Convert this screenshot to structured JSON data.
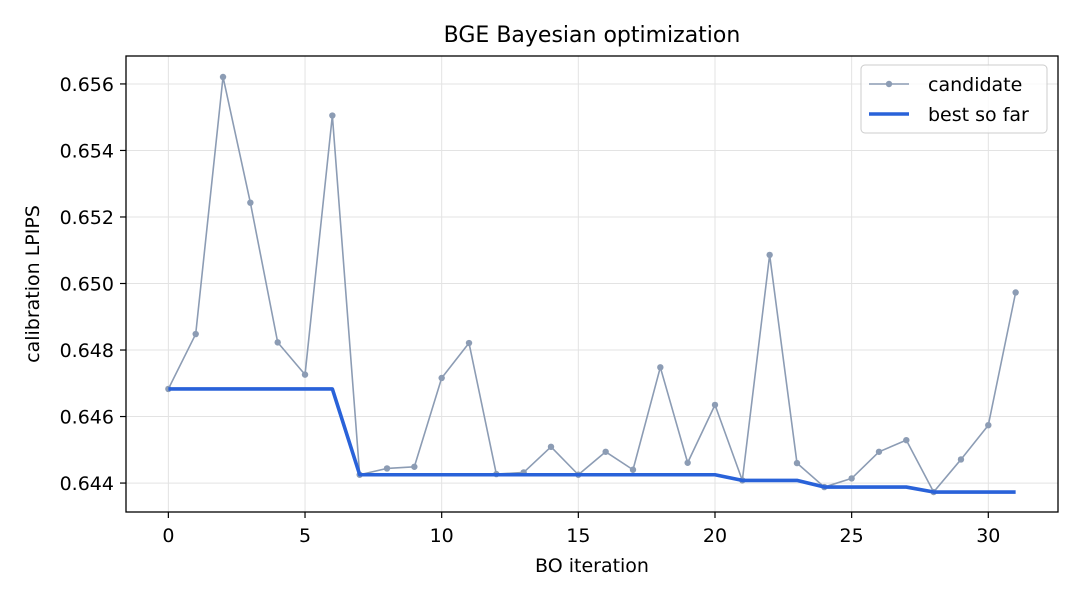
{
  "chart_data": {
    "type": "line",
    "title": "BGE Bayesian optimization",
    "xlabel": "BO iteration",
    "ylabel": "calibration LPIPS",
    "xlim": [
      -1.55,
      32.55
    ],
    "ylim": [
      0.64313,
      0.65684
    ],
    "xticks": [
      "0",
      "5",
      "10",
      "15",
      "20",
      "25",
      "30"
    ],
    "yticks": [
      "0.644",
      "0.646",
      "0.648",
      "0.650",
      "0.652",
      "0.654",
      "0.656"
    ],
    "grid": true,
    "legend_position": "top-right",
    "x": [
      0,
      1,
      2,
      3,
      4,
      5,
      6,
      7,
      8,
      9,
      10,
      11,
      12,
      13,
      14,
      15,
      16,
      17,
      18,
      19,
      20,
      21,
      22,
      23,
      24,
      25,
      26,
      27,
      28,
      29,
      30,
      31
    ],
    "series": [
      {
        "name": "candidate",
        "color": "#8c9cb4",
        "marker": "circle",
        "values": [
          0.64683,
          0.64848,
          0.65621,
          0.65243,
          0.64823,
          0.64726,
          0.65505,
          0.64425,
          0.64444,
          0.64449,
          0.64716,
          0.64821,
          0.64427,
          0.64432,
          0.64509,
          0.64425,
          0.64494,
          0.6444,
          0.64748,
          0.64461,
          0.64635,
          0.64408,
          0.65086,
          0.6446,
          0.64388,
          0.64414,
          0.64494,
          0.64529,
          0.64373,
          0.64471,
          0.64574,
          0.64973
        ]
      },
      {
        "name": "best so far",
        "color": "#2962d9",
        "marker": "none",
        "values": [
          0.64683,
          0.64683,
          0.64683,
          0.64683,
          0.64683,
          0.64683,
          0.64683,
          0.64425,
          0.64425,
          0.64425,
          0.64425,
          0.64425,
          0.64425,
          0.64425,
          0.64425,
          0.64425,
          0.64425,
          0.64425,
          0.64425,
          0.64425,
          0.64425,
          0.64408,
          0.64408,
          0.64408,
          0.64388,
          0.64388,
          0.64388,
          0.64388,
          0.64373,
          0.64373,
          0.64373,
          0.64373
        ]
      }
    ]
  }
}
